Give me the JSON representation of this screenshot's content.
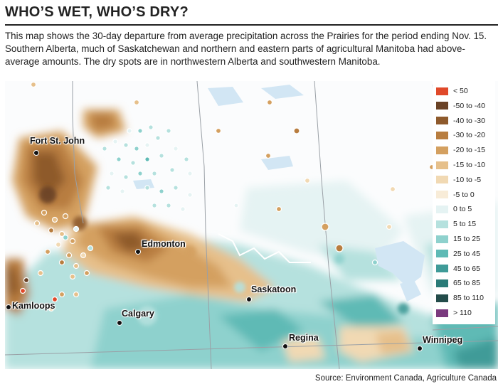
{
  "title": "WHO’S WET, WHO’S DRY?",
  "description": "This map shows the 30-day departure from average precipitation across the Prairies for the period ending Nov. 15. Southern Alberta, much of Saskatchewan and northern and eastern parts of agricultural Manitoba had above-average amounts. The dry spots are in northwestern Alberta and southwestern Manitoba.",
  "legend": [
    {
      "label": "< 50",
      "color": "#e0492a"
    },
    {
      "label": "-50 to -40",
      "color": "#6a4226"
    },
    {
      "label": "-40 to -30",
      "color": "#8e5a2c"
    },
    {
      "label": "-30 to -20",
      "color": "#b87d3f"
    },
    {
      "label": "-20 to -15",
      "color": "#d4a060"
    },
    {
      "label": "-15 to -10",
      "color": "#e6c08b"
    },
    {
      "label": "-10 to -5",
      "color": "#f1d9b3"
    },
    {
      "label": "-5 to 0",
      "color": "#f8ecd8"
    },
    {
      "label": "0 to 5",
      "color": "#e5f3f3"
    },
    {
      "label": "5 to 15",
      "color": "#b5e1de"
    },
    {
      "label": "15 to 25",
      "color": "#8ed1cd"
    },
    {
      "label": "25 to 45",
      "color": "#5ebab5"
    },
    {
      "label": "45 to 65",
      "color": "#3f9b98"
    },
    {
      "label": "65 to 85",
      "color": "#2a7b78"
    },
    {
      "label": "85 to 110",
      "color": "#234c4a"
    },
    {
      "label": "> 110",
      "color": "#7a3a7e"
    }
  ],
  "cities": [
    {
      "name": "Fort St. John"
    },
    {
      "name": "Edmonton"
    },
    {
      "name": "Saskatoon"
    },
    {
      "name": "Kamloops"
    },
    {
      "name": "Calgary"
    },
    {
      "name": "Regina"
    },
    {
      "name": "Winnipeg"
    }
  ],
  "source": "Source: Environment Canada, Agriculture Canada",
  "colors": {
    "water": "#d2e6f4",
    "border": "#9aa0a6",
    "land_north": "#fbfcfd"
  }
}
